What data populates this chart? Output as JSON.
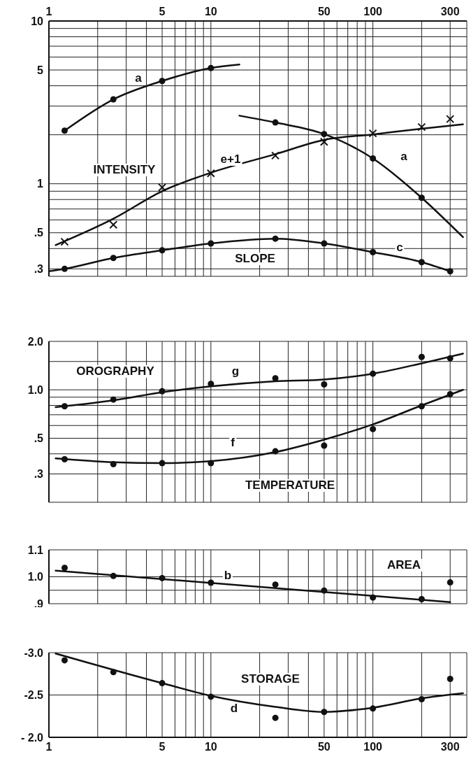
{
  "chart_data": [
    {
      "type": "line",
      "log": "xy",
      "grid": true,
      "xlim": [
        1,
        380
      ],
      "xticks": [
        1,
        {
          "value": 2,
          "label": null
        },
        {
          "value": 3,
          "label": null
        },
        {
          "value": 4,
          "label": null
        },
        5,
        {
          "value": 6,
          "label": null
        },
        {
          "value": 7,
          "label": null
        },
        {
          "value": 8,
          "label": null
        },
        {
          "value": 9,
          "label": null
        },
        10,
        {
          "value": 20,
          "label": null
        },
        {
          "value": 30,
          "label": null
        },
        {
          "value": 40,
          "label": null
        },
        50,
        {
          "value": 60,
          "label": null
        },
        {
          "value": 70,
          "label": null
        },
        {
          "value": 80,
          "label": null
        },
        {
          "value": 90,
          "label": null
        },
        100,
        {
          "value": 200,
          "label": null
        },
        300
      ],
      "ylim": [
        0.27,
        10
      ],
      "yticks": [
        {
          "value": 0.3,
          "label": ".3"
        },
        {
          "value": 0.4,
          "label": null
        },
        {
          "value": 0.5,
          "label": ".5"
        },
        {
          "value": 0.6,
          "label": null
        },
        {
          "value": 0.7,
          "label": null
        },
        {
          "value": 0.8,
          "label": null
        },
        {
          "value": 0.9,
          "label": null
        },
        1,
        {
          "value": 2,
          "label": null
        },
        {
          "value": 3,
          "label": null
        },
        {
          "value": 4,
          "label": null
        },
        5,
        {
          "value": 6,
          "label": null
        },
        {
          "value": 7,
          "label": null
        },
        {
          "value": 8,
          "label": null
        },
        {
          "value": 9,
          "label": null
        },
        10
      ],
      "series": [
        {
          "type": "line",
          "marker": "none",
          "color": "#111111",
          "x": [
            1.25,
            2.5,
            5,
            10,
            15
          ],
          "values": [
            2.12,
            3.3,
            4.28,
            5.14,
            5.4
          ]
        },
        {
          "type": "scatter",
          "marker": "circle",
          "color": "#111111",
          "x": [
            1.25,
            2.5,
            5,
            10
          ],
          "values": [
            2.12,
            3.3,
            4.28,
            5.14
          ]
        },
        {
          "type": "line",
          "marker": "none",
          "color": "#111111",
          "x": [
            15,
            25,
            50,
            100,
            200,
            360
          ],
          "values": [
            2.62,
            2.38,
            2.02,
            1.43,
            0.82,
            0.47
          ]
        },
        {
          "type": "scatter",
          "marker": "circle",
          "color": "#111111",
          "x": [
            25,
            50,
            100,
            200
          ],
          "values": [
            2.38,
            2.02,
            1.43,
            0.82
          ]
        },
        {
          "type": "line",
          "marker": "none",
          "color": "#111111",
          "x": [
            1.1,
            2.5,
            5,
            10,
            25,
            50,
            100,
            200,
            360
          ],
          "values": [
            0.42,
            0.61,
            0.9,
            1.17,
            1.52,
            1.86,
            2.01,
            2.18,
            2.32
          ]
        },
        {
          "type": "scatter",
          "marker": "cross",
          "color": "#111111",
          "x": [
            1.25,
            2.5,
            5,
            10,
            25,
            50,
            100,
            200,
            300
          ],
          "values": [
            0.44,
            0.56,
            0.95,
            1.16,
            1.49,
            1.81,
            2.04,
            2.23,
            2.5
          ]
        },
        {
          "type": "line",
          "marker": "none",
          "color": "#111111",
          "x": [
            1,
            1.25,
            2.5,
            5,
            10,
            25,
            50,
            100,
            200,
            300
          ],
          "values": [
            0.29,
            0.3,
            0.35,
            0.39,
            0.43,
            0.46,
            0.43,
            0.38,
            0.33,
            0.29
          ]
        },
        {
          "type": "scatter",
          "marker": "circle",
          "color": "#111111",
          "x": [
            1.25,
            2.5,
            5,
            10,
            25,
            50,
            100,
            200,
            300
          ],
          "values": [
            0.3,
            0.35,
            0.39,
            0.43,
            0.46,
            0.43,
            0.38,
            0.33,
            0.29
          ]
        }
      ],
      "annotations": [
        "a",
        "a",
        "INTENSITY",
        "e+1",
        "SLOPE",
        "c"
      ]
    },
    {
      "type": "line",
      "log": "xy",
      "grid": true,
      "tick_labels": "y",
      "xlim": [
        1,
        380
      ],
      "xticks": [
        {
          "value": 1,
          "label": null
        },
        {
          "value": 2,
          "label": null
        },
        {
          "value": 3,
          "label": null
        },
        {
          "value": 4,
          "label": null
        },
        {
          "value": 5,
          "label": null
        },
        {
          "value": 6,
          "label": null
        },
        {
          "value": 7,
          "label": null
        },
        {
          "value": 8,
          "label": null
        },
        {
          "value": 9,
          "label": null
        },
        {
          "value": 10,
          "label": null
        },
        {
          "value": 20,
          "label": null
        },
        {
          "value": 30,
          "label": null
        },
        {
          "value": 40,
          "label": null
        },
        {
          "value": 50,
          "label": null
        },
        {
          "value": 60,
          "label": null
        },
        {
          "value": 70,
          "label": null
        },
        {
          "value": 80,
          "label": null
        },
        {
          "value": 90,
          "label": null
        },
        {
          "value": 100,
          "label": null
        },
        {
          "value": 200,
          "label": null
        },
        {
          "value": 300,
          "label": null
        }
      ],
      "ylim": [
        0.2,
        2.0
      ],
      "yticks": [
        {
          "value": 0.3,
          "label": ".3"
        },
        {
          "value": 0.4,
          "label": null
        },
        {
          "value": 0.5,
          "label": ".5"
        },
        {
          "value": 0.6,
          "label": null
        },
        {
          "value": 0.7,
          "label": null
        },
        {
          "value": 0.8,
          "label": null
        },
        {
          "value": 0.9,
          "label": null
        },
        {
          "value": 1.0,
          "label": "1.0"
        },
        {
          "value": 1.5,
          "label": null
        },
        {
          "value": 2.0,
          "label": "2.0"
        }
      ],
      "series": [
        {
          "type": "line",
          "marker": "none",
          "color": "#111111",
          "x": [
            1.1,
            2.5,
            5,
            10,
            25,
            50,
            100,
            200,
            360
          ],
          "values": [
            0.78,
            0.86,
            0.965,
            1.05,
            1.13,
            1.16,
            1.26,
            1.46,
            1.68
          ]
        },
        {
          "type": "scatter",
          "marker": "circle",
          "color": "#111111",
          "x": [
            1.25,
            2.5,
            5,
            10,
            25,
            50,
            100,
            200,
            300
          ],
          "values": [
            0.79,
            0.87,
            0.98,
            1.09,
            1.18,
            1.08,
            1.26,
            1.6,
            1.57
          ]
        },
        {
          "type": "line",
          "marker": "none",
          "color": "#111111",
          "x": [
            1.1,
            2.5,
            5,
            10,
            25,
            50,
            100,
            200,
            360
          ],
          "values": [
            0.375,
            0.355,
            0.35,
            0.36,
            0.41,
            0.49,
            0.61,
            0.8,
            1.0
          ]
        },
        {
          "type": "scatter",
          "marker": "circle",
          "color": "#111111",
          "x": [
            1.25,
            2.5,
            5,
            10,
            25,
            50,
            100,
            200,
            300
          ],
          "values": [
            0.37,
            0.345,
            0.35,
            0.35,
            0.415,
            0.45,
            0.57,
            0.79,
            0.94
          ]
        }
      ],
      "annotations": [
        "OROGRAPHY",
        "g",
        "f",
        "TEMPERATURE"
      ]
    },
    {
      "type": "line",
      "log": "x",
      "grid": true,
      "tick_labels": "y",
      "xlim": [
        1,
        380
      ],
      "xticks": [
        {
          "value": 1,
          "label": null
        },
        {
          "value": 2,
          "label": null
        },
        {
          "value": 3,
          "label": null
        },
        {
          "value": 4,
          "label": null
        },
        {
          "value": 5,
          "label": null
        },
        {
          "value": 6,
          "label": null
        },
        {
          "value": 7,
          "label": null
        },
        {
          "value": 8,
          "label": null
        },
        {
          "value": 9,
          "label": null
        },
        {
          "value": 10,
          "label": null
        },
        {
          "value": 20,
          "label": null
        },
        {
          "value": 30,
          "label": null
        },
        {
          "value": 40,
          "label": null
        },
        {
          "value": 50,
          "label": null
        },
        {
          "value": 60,
          "label": null
        },
        {
          "value": 70,
          "label": null
        },
        {
          "value": 80,
          "label": null
        },
        {
          "value": 90,
          "label": null
        },
        {
          "value": 100,
          "label": null
        },
        {
          "value": 200,
          "label": null
        },
        {
          "value": 300,
          "label": null
        }
      ],
      "ylim": [
        0.9,
        1.1
      ],
      "yticks": [
        {
          "value": 0.9,
          "label": ".9"
        },
        {
          "value": 0.95,
          "label": null
        },
        {
          "value": 1.0,
          "label": "1.0"
        },
        {
          "value": 1.1,
          "label": "1.1"
        }
      ],
      "series": [
        {
          "type": "line",
          "marker": "none",
          "color": "#111111",
          "x": [
            1.1,
            300
          ],
          "values": [
            1.023,
            0.906
          ]
        },
        {
          "type": "scatter",
          "marker": "circle",
          "color": "#111111",
          "x": [
            1.25,
            2.5,
            5,
            10,
            25,
            50,
            100,
            200,
            300
          ],
          "values": [
            1.033,
            1.003,
            0.995,
            0.978,
            0.971,
            0.949,
            0.923,
            0.917,
            0.979
          ]
        }
      ],
      "annotations": [
        "AREA",
        "b"
      ]
    },
    {
      "type": "line",
      "log": "x",
      "grid": true,
      "xlim": [
        1,
        380
      ],
      "xticks": [
        1,
        {
          "value": 2,
          "label": null
        },
        {
          "value": 3,
          "label": null
        },
        {
          "value": 4,
          "label": null
        },
        5,
        {
          "value": 6,
          "label": null
        },
        {
          "value": 7,
          "label": null
        },
        {
          "value": 8,
          "label": null
        },
        {
          "value": 9,
          "label": null
        },
        10,
        {
          "value": 20,
          "label": null
        },
        {
          "value": 30,
          "label": null
        },
        {
          "value": 40,
          "label": null
        },
        50,
        {
          "value": 60,
          "label": null
        },
        {
          "value": 70,
          "label": null
        },
        {
          "value": 80,
          "label": null
        },
        {
          "value": 90,
          "label": null
        },
        100,
        {
          "value": 200,
          "label": null
        },
        300
      ],
      "ylim": [
        -2.0,
        -3.0
      ],
      "yticks": [
        {
          "value": -3.0,
          "label": "-3.0"
        },
        {
          "value": -2.5,
          "label": "-2.5"
        },
        {
          "value": -2.0,
          "label": "- 2.0"
        }
      ],
      "series": [
        {
          "type": "line",
          "marker": "none",
          "color": "#111111",
          "x": [
            1.1,
            5,
            10,
            25,
            50,
            100,
            200,
            360
          ],
          "values": [
            -2.99,
            -2.64,
            -2.49,
            -2.36,
            -2.3,
            -2.35,
            -2.46,
            -2.52
          ]
        },
        {
          "type": "scatter",
          "marker": "circle",
          "color": "#111111",
          "x": [
            1.25,
            2.5,
            5,
            10,
            25,
            50,
            100,
            200,
            300
          ],
          "values": [
            -2.91,
            -2.77,
            -2.64,
            -2.48,
            -2.23,
            -2.3,
            -2.34,
            -2.45,
            -2.69
          ]
        }
      ],
      "annotations": [
        "STORAGE",
        "d"
      ]
    }
  ]
}
